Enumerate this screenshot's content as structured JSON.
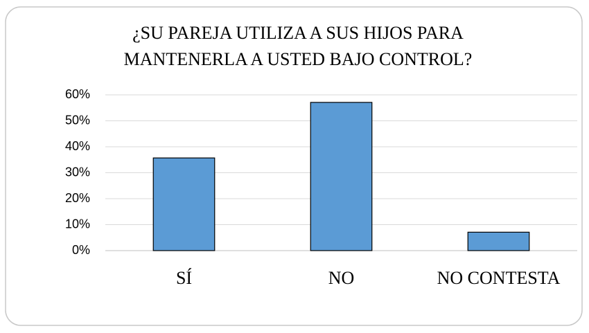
{
  "chart_data": {
    "type": "bar",
    "title": [
      "¿SU PAREJA UTILIZA A SUS HIJOS PARA",
      "MANTENERLA A USTED BAJO CONTROL?"
    ],
    "categories": [
      "SÍ",
      "NO",
      "NO CONTESTA"
    ],
    "values": [
      35.7,
      57.1,
      7.1
    ],
    "color": "#5b9bd5",
    "ylim": [
      0,
      60
    ],
    "yticks": [
      {
        "value": 0,
        "label": "0%"
      },
      {
        "value": 10,
        "label": "10%"
      },
      {
        "value": 20,
        "label": "20%"
      },
      {
        "value": 30,
        "label": "30%"
      },
      {
        "value": 40,
        "label": "40%"
      },
      {
        "value": 50,
        "label": "50%"
      },
      {
        "value": 60,
        "label": "60%"
      }
    ],
    "grid": true
  }
}
